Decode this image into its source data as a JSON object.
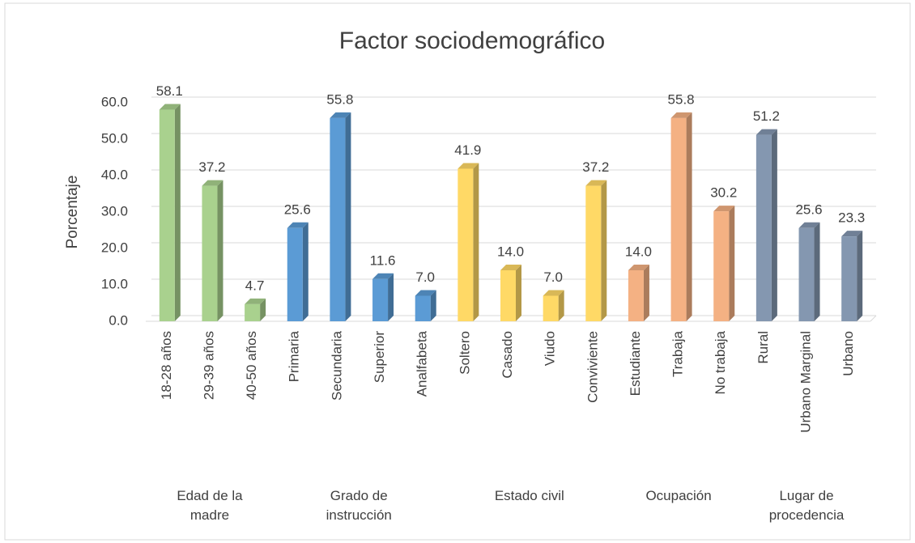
{
  "chart_data": {
    "type": "bar",
    "title": "Factor sociodemográfico",
    "y_label": "Porcentaje",
    "ylim": [
      0,
      60
    ],
    "yticks": [
      {
        "value": 0,
        "label": "0.0"
      },
      {
        "value": 10,
        "label": "10.0"
      },
      {
        "value": 20,
        "label": "20.0"
      },
      {
        "value": 30,
        "label": "30.0"
      },
      {
        "value": 40,
        "label": "40.0"
      },
      {
        "value": 50,
        "label": "50.0"
      },
      {
        "value": 60,
        "label": "60.0"
      }
    ],
    "grid": true,
    "groups": [
      {
        "name": "Edad de la madre",
        "color": "#a9d18e",
        "categories": [
          "18-28 años",
          "29-39 años",
          "40-50 años"
        ],
        "values": [
          58.1,
          37.2,
          4.7
        ],
        "value_labels": [
          "58.1",
          "37.2",
          "4.7"
        ]
      },
      {
        "name": "Grado de instrucción",
        "color": "#5b9bd5",
        "categories": [
          "Primaria",
          "Secundaria",
          "Superior",
          "Analfabeta"
        ],
        "values": [
          25.6,
          55.8,
          11.6,
          7.0
        ],
        "value_labels": [
          "25.6",
          "55.8",
          "11.6",
          "7.0"
        ]
      },
      {
        "name": "Estado civil",
        "color": "#ffd966",
        "categories": [
          "Soltero",
          "Casado",
          "Viudo",
          "Conviviente"
        ],
        "values": [
          41.9,
          14.0,
          7.0,
          37.2
        ],
        "value_labels": [
          "41.9",
          "14.0",
          "7.0",
          "37.2"
        ]
      },
      {
        "name": "Ocupación",
        "color": "#f4b183",
        "categories": [
          "Estudiante",
          "Trabaja",
          "No trabaja"
        ],
        "values": [
          14.0,
          55.8,
          30.2
        ],
        "value_labels": [
          "14.0",
          "55.8",
          "30.2"
        ]
      },
      {
        "name": "Lugar de procedencia",
        "color": "#8497b0",
        "categories": [
          "Rural",
          "Urbano Marginal",
          "Urbano"
        ],
        "values": [
          51.2,
          25.6,
          23.3
        ],
        "value_labels": [
          "51.2",
          "25.6",
          "23.3"
        ]
      }
    ]
  }
}
